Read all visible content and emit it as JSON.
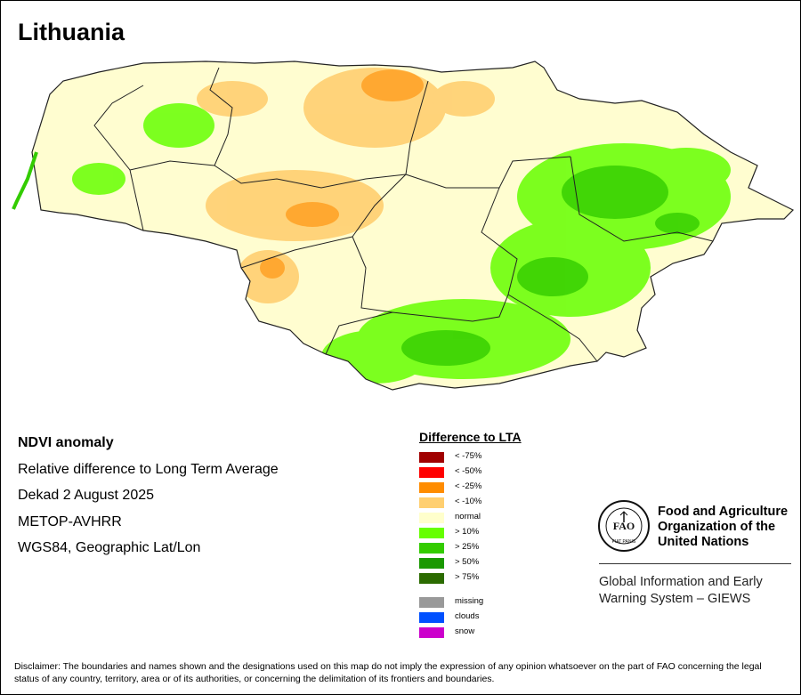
{
  "map": {
    "title": "Lithuania",
    "country_fill": "#fffdd0",
    "border_color": "#222222"
  },
  "info": {
    "lines": [
      "NDVI anomaly",
      "Relative difference to Long Term Average",
      "Dekad 2 August 2025",
      "METOP-AVHRR",
      "WGS84, Geographic Lat/Lon"
    ]
  },
  "legend": {
    "title": "Difference to LTA",
    "items": [
      {
        "label": "< -75%",
        "color": "#a00000"
      },
      {
        "label": "< -50%",
        "color": "#ff0000"
      },
      {
        "label": "< -25%",
        "color": "#ff8c00"
      },
      {
        "label": "< -10%",
        "color": "#ffcf70"
      },
      {
        "label": "normal",
        "color": "#ffffcc"
      },
      {
        "label": "> 10%",
        "color": "#66ff00"
      },
      {
        "label": "> 25%",
        "color": "#33cc00"
      },
      {
        "label": "> 50%",
        "color": "#1a9900"
      },
      {
        "label": "> 75%",
        "color": "#2b6b00"
      }
    ],
    "extra_items": [
      {
        "label": "missing",
        "color": "#999999"
      },
      {
        "label": "clouds",
        "color": "#0050ff"
      },
      {
        "label": "snow",
        "color": "#cc00cc"
      }
    ]
  },
  "fao": {
    "org_name": "Food and Agriculture Organization of the United Nations",
    "logo_letters": "FAO",
    "motto": "FIAT PANIS",
    "system_name": "Global Information and Early Warning System – GIEWS"
  },
  "disclaimer": "Disclaimer: The boundaries and names shown and the designations used on this map do not imply the expression of any opinion whatsoever on the part of FAO concerning the legal status of any country, territory, area or of its authorities, or concerning the delimitation of its frontiers and boundaries."
}
